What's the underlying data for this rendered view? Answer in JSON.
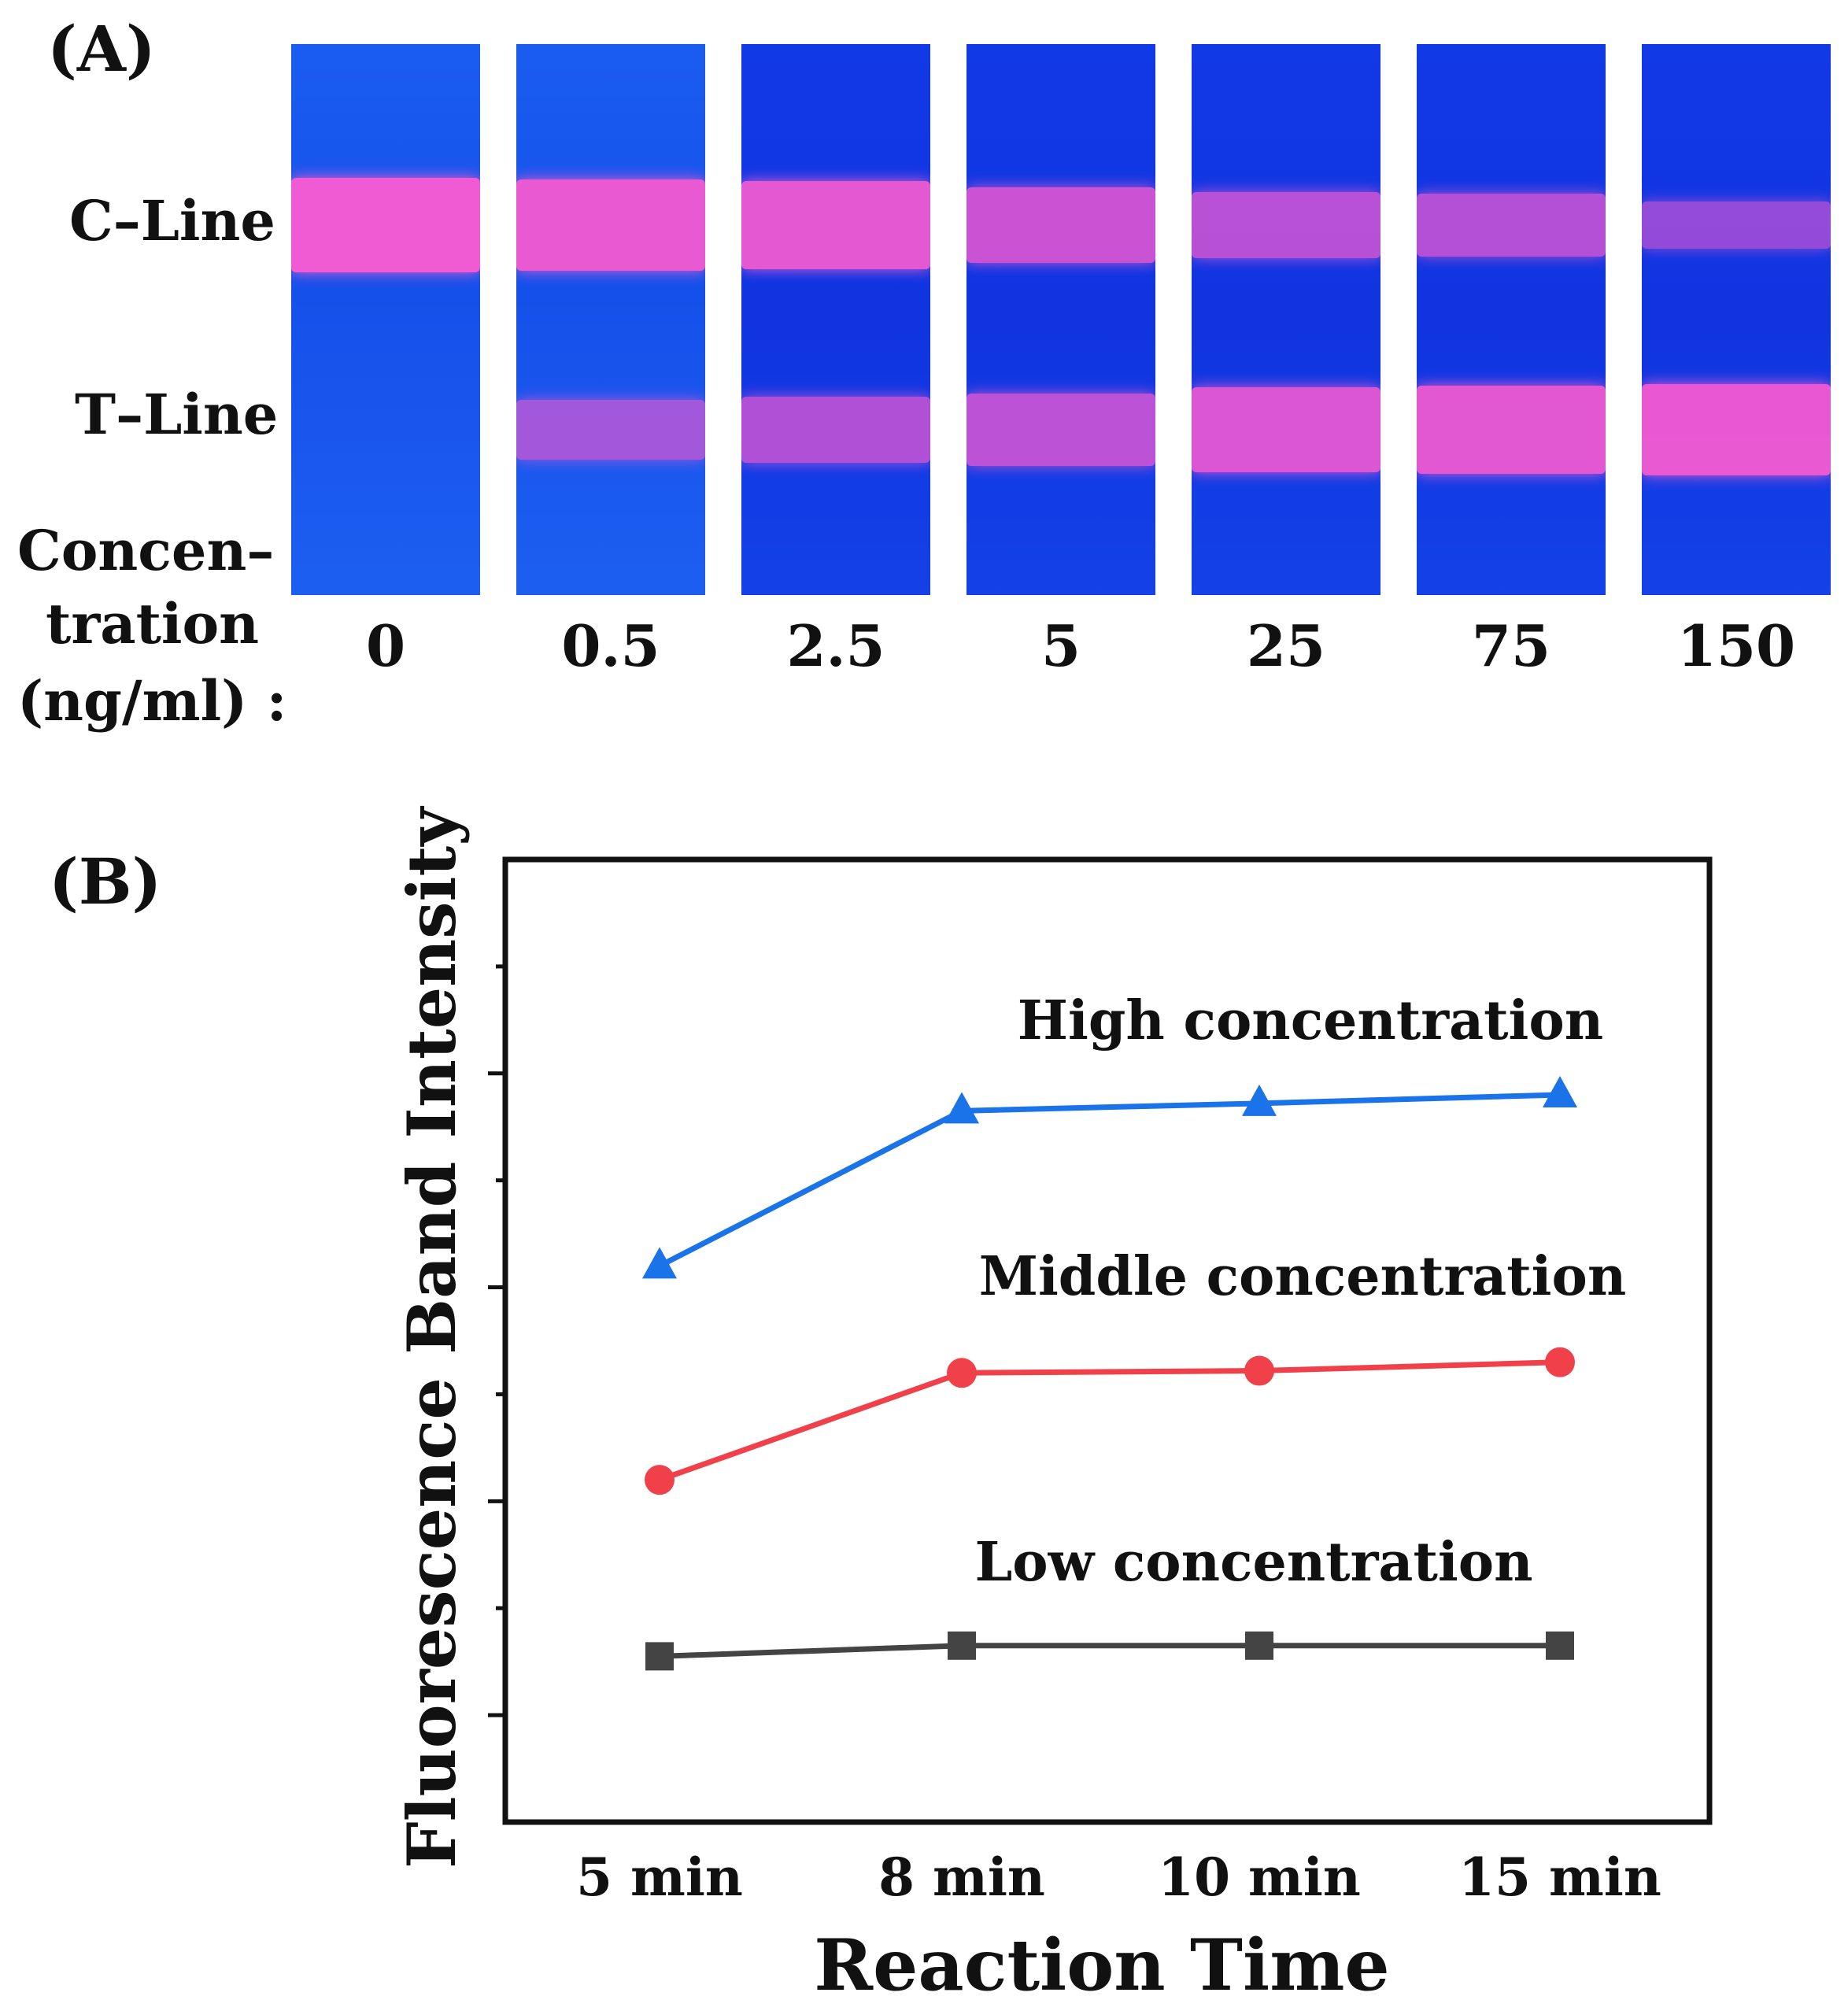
{
  "panel_a": {
    "letter": "(A)",
    "c_line_label": "C–Line",
    "t_line_label": "T–Line",
    "concentration_label_lines": [
      "Concen–",
      "tration",
      "(ng/ml) :"
    ],
    "strips": [
      {
        "concentration": "0",
        "c_intensity": 1.0,
        "t_intensity": 0.0
      },
      {
        "concentration": "0.5",
        "c_intensity": 0.95,
        "t_intensity": 0.45
      },
      {
        "concentration": "2.5",
        "c_intensity": 0.9,
        "t_intensity": 0.55
      },
      {
        "concentration": "5",
        "c_intensity": 0.7,
        "t_intensity": 0.65
      },
      {
        "concentration": "25",
        "c_intensity": 0.55,
        "t_intensity": 0.85
      },
      {
        "concentration": "75",
        "c_intensity": 0.5,
        "t_intensity": 0.9
      },
      {
        "concentration": "150",
        "c_intensity": 0.25,
        "t_intensity": 0.95
      }
    ],
    "colors": {
      "strip_blue": "#1a56ee",
      "band_pink": "#f05ad2"
    }
  },
  "chart_data": {
    "type": "line",
    "panel_letter": "(B)",
    "title": "",
    "xlabel": "Reaction Time",
    "ylabel": "Fluorescence Band Intensity",
    "categories": [
      "5 min",
      "8 min",
      "10 min",
      "15 min"
    ],
    "ylim": [
      0,
      9
    ],
    "y_ticks_unlabeled": [
      1,
      3,
      5,
      7
    ],
    "grid": false,
    "series": [
      {
        "name": "High concentration",
        "marker": "triangle",
        "color": "#1a73e8",
        "values": [
          5.2,
          6.65,
          6.72,
          6.8
        ]
      },
      {
        "name": "Middle concentration",
        "marker": "circle",
        "color": "#f0404a",
        "values": [
          3.2,
          4.2,
          4.22,
          4.3
        ]
      },
      {
        "name": "Low concentration",
        "marker": "square",
        "color": "#444444",
        "values": [
          1.55,
          1.65,
          1.65,
          1.65
        ]
      }
    ]
  }
}
